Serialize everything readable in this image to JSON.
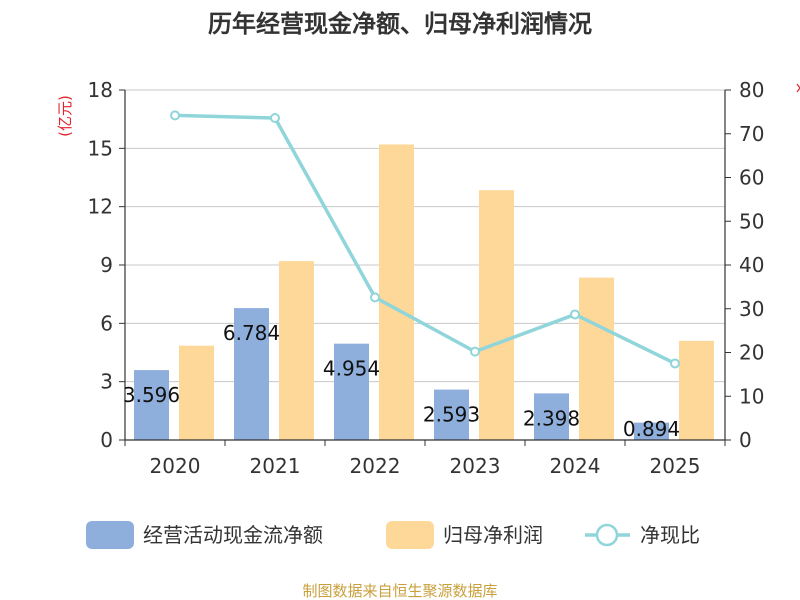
{
  "chart_data": {
    "type": "bar+line",
    "title": "历年经营现金净额、归母净利润情况",
    "categories": [
      "2020",
      "2021",
      "2022",
      "2023",
      "2024",
      "2025"
    ],
    "y_left": {
      "unit": "(亿元)",
      "ylim": [
        0,
        18
      ],
      "ticks": [
        "0",
        "3",
        "6",
        "9",
        "12",
        "15",
        "18"
      ]
    },
    "y_right": {
      "ylim": [
        0,
        80
      ],
      "ticks": [
        "0",
        "10",
        "20",
        "30",
        "40",
        "50",
        "60",
        "70",
        "80"
      ]
    },
    "series": [
      {
        "name": "经营活动现金流净额",
        "type": "bar",
        "axis": "left",
        "color": "#8eaedc",
        "values": [
          3.596,
          6.784,
          4.954,
          2.593,
          2.398,
          0.894
        ],
        "labels": [
          "3.596",
          "6.784",
          "4.954",
          "2.593",
          "2.398",
          "0.894"
        ]
      },
      {
        "name": "归母净利润",
        "type": "bar",
        "axis": "left",
        "color": "#fed899",
        "values": [
          4.85,
          9.2,
          15.2,
          12.85,
          8.35,
          5.1
        ]
      },
      {
        "name": "净现比",
        "type": "line",
        "axis": "right",
        "color": "#8fd5d9",
        "values": [
          74.2,
          73.6,
          32.6,
          20.2,
          28.7,
          17.5
        ]
      }
    ],
    "legend": {
      "position": "bottom"
    },
    "grid": true
  },
  "footer": "制图数据来自恒生聚源数据库"
}
